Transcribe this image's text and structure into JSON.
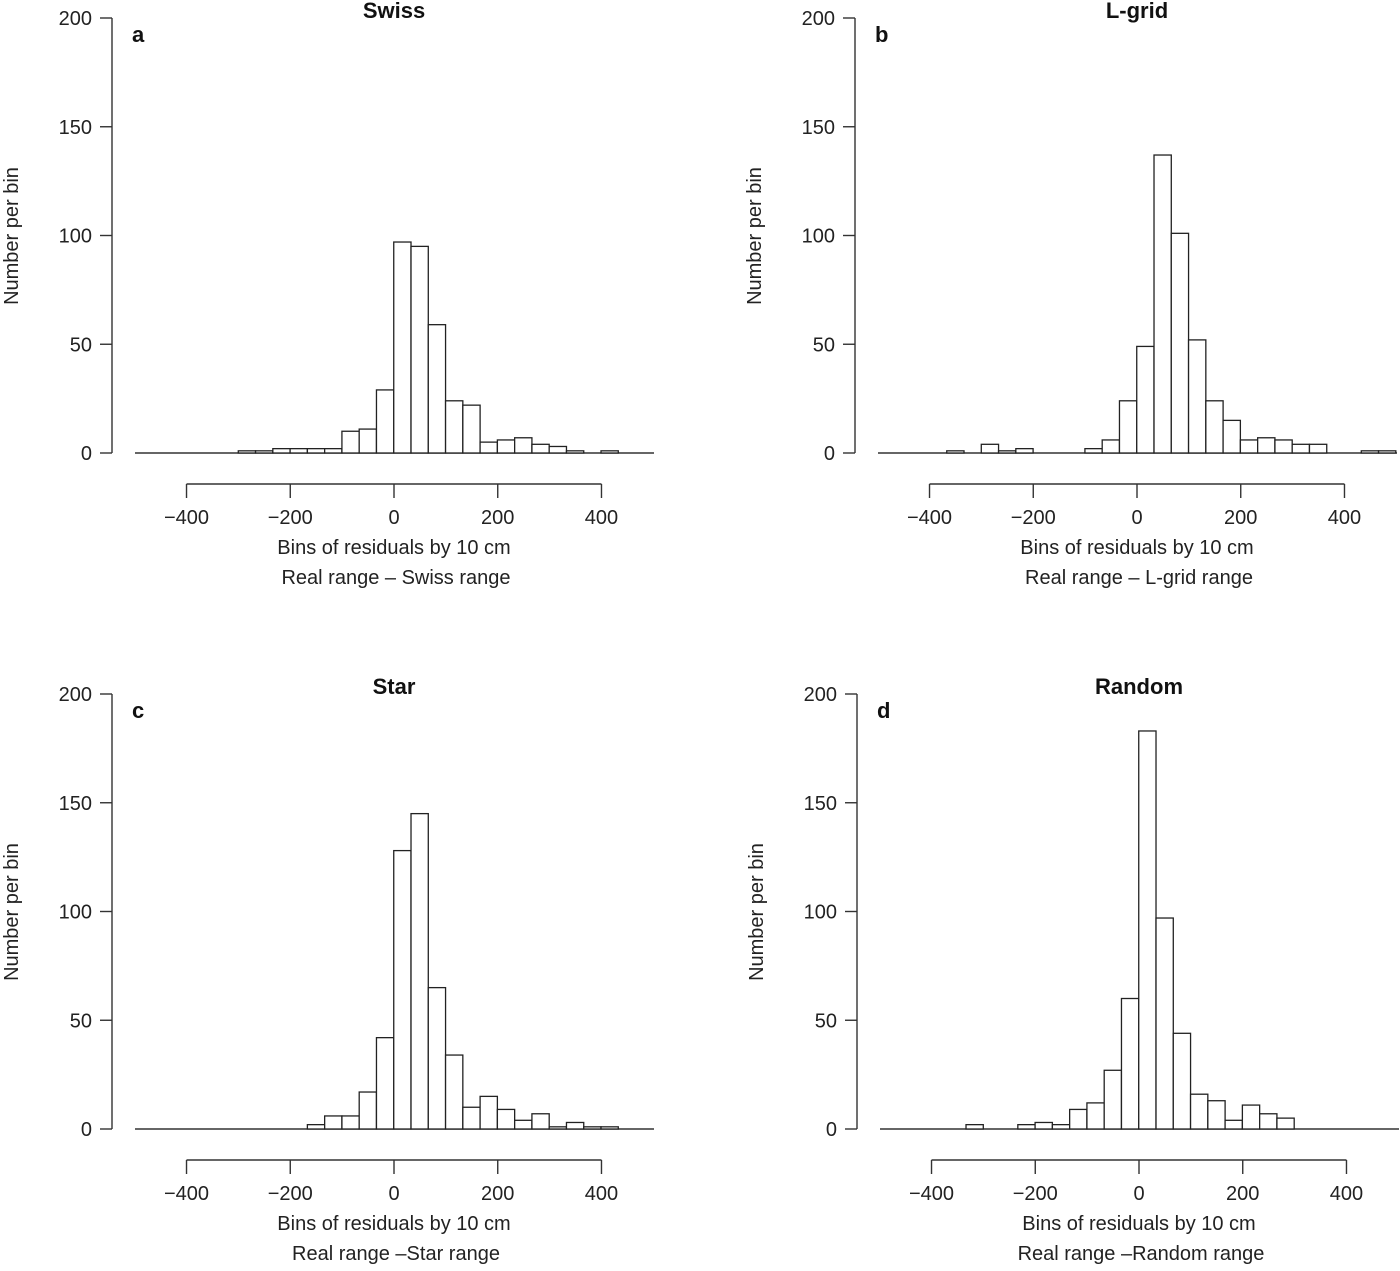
{
  "chart_data": [
    {
      "type": "bar",
      "letter": "a",
      "title": "Swiss",
      "ylabel": "Number per bin",
      "xlabel": "Bins of residuals by 10 cm",
      "xlabel2": "Real range – Swiss range",
      "xlim": [
        -500,
        500
      ],
      "ylim": [
        0,
        200
      ],
      "yticks": [
        0,
        50,
        100,
        150,
        200
      ],
      "xticks": [
        -400,
        -200,
        0,
        200,
        400
      ],
      "bin_start": -500,
      "bin_width": 33.3,
      "values": [
        0,
        0,
        0,
        0,
        0,
        0,
        1,
        1,
        2,
        2,
        2,
        2,
        10,
        11,
        29,
        97,
        95,
        59,
        24,
        22,
        5,
        6,
        7,
        4,
        3,
        1,
        0,
        1,
        0,
        0
      ]
    },
    {
      "type": "bar",
      "letter": "b",
      "title": "L-grid",
      "ylabel": "Number per bin",
      "xlabel": "Bins of residuals by 10 cm",
      "xlabel2": "Real range – L-grid range",
      "xlim": [
        -500,
        500
      ],
      "ylim": [
        0,
        200
      ],
      "yticks": [
        0,
        50,
        100,
        150,
        200
      ],
      "xticks": [
        -400,
        -200,
        0,
        200,
        400
      ],
      "bin_start": -500,
      "bin_width": 33.3,
      "values": [
        0,
        0,
        0,
        0,
        1,
        0,
        4,
        1,
        2,
        0,
        0,
        0,
        2,
        6,
        24,
        49,
        137,
        101,
        52,
        24,
        15,
        6,
        7,
        6,
        4,
        4,
        0,
        0,
        1,
        1
      ]
    },
    {
      "type": "bar",
      "letter": "c",
      "title": "Star",
      "ylabel": "Number per bin",
      "xlabel": "Bins of residuals by 10 cm",
      "xlabel2": "Real range –Star range",
      "xlim": [
        -500,
        500
      ],
      "ylim": [
        0,
        200
      ],
      "yticks": [
        0,
        50,
        100,
        150,
        200
      ],
      "xticks": [
        -400,
        -200,
        0,
        200,
        400
      ],
      "bin_start": -500,
      "bin_width": 33.3,
      "values": [
        0,
        0,
        0,
        0,
        0,
        0,
        0,
        0,
        0,
        0,
        2,
        6,
        6,
        17,
        42,
        128,
        145,
        65,
        34,
        10,
        15,
        9,
        4,
        7,
        1,
        3,
        1,
        1,
        0,
        0
      ]
    },
    {
      "type": "bar",
      "letter": "d",
      "title": "Random",
      "ylabel": "Number per bin",
      "xlabel": "Bins of residuals by 10 cm",
      "xlabel2": "Real range –Random range",
      "xlim": [
        -500,
        500
      ],
      "ylim": [
        0,
        200
      ],
      "yticks": [
        0,
        50,
        100,
        150,
        200
      ],
      "xticks": [
        -400,
        -200,
        0,
        200,
        400
      ],
      "bin_start": -500,
      "bin_width": 33.3,
      "values": [
        0,
        0,
        0,
        0,
        0,
        2,
        0,
        0,
        2,
        3,
        2,
        9,
        12,
        27,
        60,
        183,
        97,
        44,
        16,
        13,
        4,
        11,
        7,
        5,
        0,
        0,
        0,
        0,
        0,
        0
      ]
    }
  ]
}
